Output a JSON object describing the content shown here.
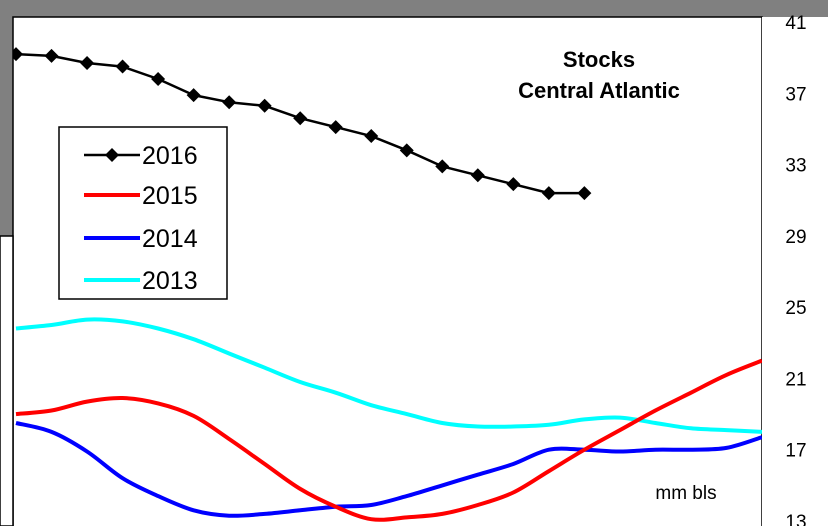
{
  "chart_data": {
    "type": "line",
    "title": [
      "Stocks",
      "Central Atlantic"
    ],
    "unit_label": "mm bls",
    "y_axis": {
      "side": "right",
      "min": 13,
      "max": 41,
      "ticks": [
        41,
        37,
        33,
        29,
        25,
        21,
        17,
        13
      ]
    },
    "x_axis": {
      "min": 0,
      "max": 21,
      "labels_visible": false
    },
    "legend": {
      "placement": "left",
      "entries": [
        "2016",
        "2015",
        "2014",
        "2013"
      ]
    },
    "series": [
      {
        "name": "2016",
        "color": "#000000",
        "marker": "diamond",
        "x": [
          0,
          1,
          2,
          3,
          4,
          5,
          6,
          7,
          8,
          9,
          10,
          11,
          12,
          13,
          14,
          15,
          16
        ],
        "values": [
          39.2,
          39.1,
          38.7,
          38.5,
          37.8,
          36.9,
          36.5,
          36.3,
          35.6,
          35.1,
          34.6,
          33.8,
          32.9,
          32.4,
          31.9,
          31.4,
          31.4
        ]
      },
      {
        "name": "2015",
        "color": "#ff0000",
        "marker": "none",
        "x": [
          0,
          1,
          2,
          3,
          4,
          5,
          6,
          7,
          8,
          9,
          10,
          11,
          12,
          13,
          14,
          15,
          16,
          17,
          18,
          19,
          20,
          21
        ],
        "values": [
          19.0,
          19.2,
          19.7,
          19.9,
          19.6,
          18.9,
          17.6,
          16.2,
          14.8,
          13.8,
          13.1,
          13.2,
          13.4,
          13.9,
          14.6,
          15.8,
          17.0,
          18.1,
          19.2,
          20.2,
          21.2,
          22.0
        ]
      },
      {
        "name": "2014",
        "color": "#0000ff",
        "marker": "none",
        "x": [
          0,
          1,
          2,
          3,
          4,
          5,
          6,
          7,
          8,
          9,
          10,
          11,
          12,
          13,
          14,
          15,
          16,
          17,
          18,
          19,
          20,
          21
        ],
        "values": [
          18.5,
          18.0,
          16.9,
          15.4,
          14.4,
          13.6,
          13.3,
          13.4,
          13.6,
          13.8,
          13.9,
          14.4,
          15.0,
          15.6,
          16.2,
          17.0,
          17.0,
          16.9,
          17.0,
          17.0,
          17.1,
          17.7
        ]
      },
      {
        "name": "2013",
        "color": "#00ffff",
        "marker": "none",
        "x": [
          0,
          1,
          2,
          3,
          4,
          5,
          6,
          7,
          8,
          9,
          10,
          11,
          12,
          13,
          14,
          15,
          16,
          17,
          18,
          19,
          20,
          21
        ],
        "values": [
          23.8,
          24.0,
          24.3,
          24.2,
          23.8,
          23.2,
          22.4,
          21.6,
          20.8,
          20.2,
          19.5,
          19.0,
          18.5,
          18.3,
          18.3,
          18.4,
          18.7,
          18.8,
          18.5,
          18.2,
          18.1,
          18.0
        ]
      }
    ]
  }
}
